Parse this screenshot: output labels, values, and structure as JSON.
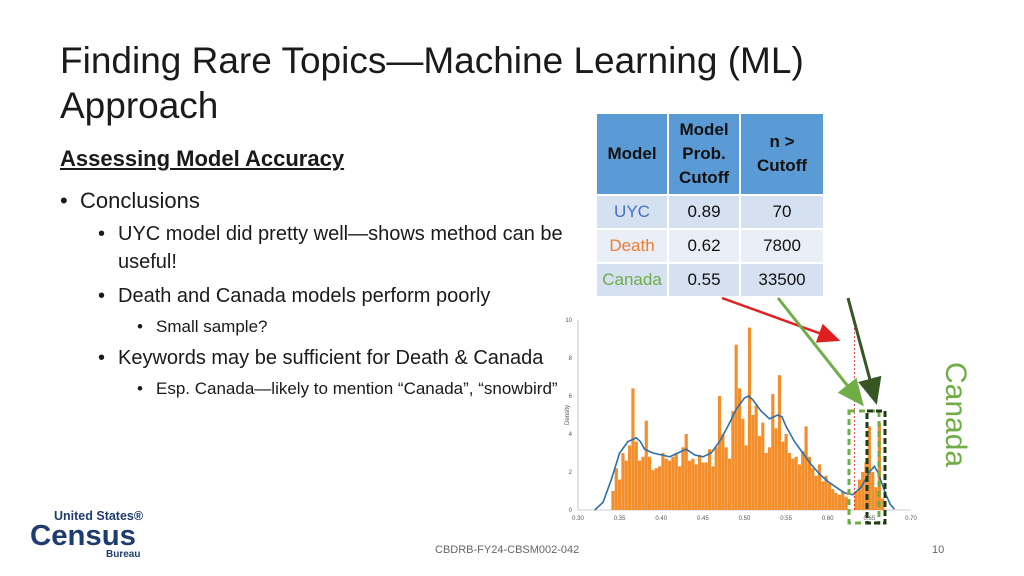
{
  "slide": {
    "title": "Finding Rare Topics—Machine Learning (ML) Approach",
    "subtitle": "Assessing Model Accuracy",
    "bullets": [
      {
        "level": 1,
        "text": "Conclusions"
      },
      {
        "level": 2,
        "text": "UYC model did pretty well—shows method can be useful!"
      },
      {
        "level": 2,
        "text": "Death and Canada models perform poorly"
      },
      {
        "level": 3,
        "text": "Small sample?"
      },
      {
        "level": 2,
        "text": "Keywords may be sufficient for Death & Canada"
      },
      {
        "level": 3,
        "text": "Esp. Canada—likely to mention “Canada”, “snowbird”"
      }
    ],
    "footer": "CBDRB-FY24-CBSM002-042",
    "page_number": "10",
    "side_label": "Canada"
  },
  "table": {
    "headers": [
      "Model",
      "Model Prob. Cutoff",
      "n > Cutoff"
    ],
    "rows": [
      {
        "model": "UYC",
        "cutoff": "0.89",
        "n": "70",
        "color": "#4472c4"
      },
      {
        "model": "Death",
        "cutoff": "0.62",
        "n": "7800",
        "color": "#ed7d31"
      },
      {
        "model": "Canada",
        "cutoff": "0.55",
        "n": "33500",
        "color": "#70ad47"
      }
    ]
  },
  "logo": {
    "line1": "United States®",
    "line2": "Census",
    "line3": "Bureau"
  },
  "colors": {
    "header": "#5b9bd5",
    "bar": "#f28e2b",
    "kde": "#2f6fa7",
    "red_line": "#e02020",
    "green_arrow": "#70ad47",
    "dark_green": "#375623"
  },
  "chart_data": {
    "type": "bar",
    "ylabel": "Density",
    "xlim": [
      0.3,
      0.7
    ],
    "ylim": [
      0,
      10
    ],
    "xticks": [
      "0.30",
      "0.35",
      "0.40",
      "0.45",
      "0.50",
      "0.55",
      "0.60",
      "0.65",
      "0.70"
    ],
    "yticks": [
      "0",
      "2",
      "4",
      "6",
      "8",
      "10"
    ],
    "cutoff_line": 0.632,
    "bars": [
      {
        "x": 0.342,
        "y": 1.0
      },
      {
        "x": 0.346,
        "y": 2.2
      },
      {
        "x": 0.35,
        "y": 1.6
      },
      {
        "x": 0.354,
        "y": 3.0
      },
      {
        "x": 0.358,
        "y": 2.6
      },
      {
        "x": 0.362,
        "y": 3.4
      },
      {
        "x": 0.366,
        "y": 6.4
      },
      {
        "x": 0.37,
        "y": 3.6
      },
      {
        "x": 0.374,
        "y": 2.6
      },
      {
        "x": 0.378,
        "y": 2.8
      },
      {
        "x": 0.382,
        "y": 4.7
      },
      {
        "x": 0.386,
        "y": 2.8
      },
      {
        "x": 0.39,
        "y": 2.1
      },
      {
        "x": 0.394,
        "y": 2.2
      },
      {
        "x": 0.398,
        "y": 2.3
      },
      {
        "x": 0.402,
        "y": 3.0
      },
      {
        "x": 0.406,
        "y": 2.7
      },
      {
        "x": 0.41,
        "y": 2.6
      },
      {
        "x": 0.414,
        "y": 2.8
      },
      {
        "x": 0.418,
        "y": 3.0
      },
      {
        "x": 0.422,
        "y": 2.3
      },
      {
        "x": 0.426,
        "y": 3.3
      },
      {
        "x": 0.43,
        "y": 4.0
      },
      {
        "x": 0.434,
        "y": 2.6
      },
      {
        "x": 0.438,
        "y": 2.7
      },
      {
        "x": 0.442,
        "y": 2.4
      },
      {
        "x": 0.446,
        "y": 2.9
      },
      {
        "x": 0.45,
        "y": 2.5
      },
      {
        "x": 0.454,
        "y": 2.5
      },
      {
        "x": 0.458,
        "y": 3.2
      },
      {
        "x": 0.462,
        "y": 2.3
      },
      {
        "x": 0.466,
        "y": 3.3
      },
      {
        "x": 0.47,
        "y": 6.0
      },
      {
        "x": 0.474,
        "y": 4.0
      },
      {
        "x": 0.478,
        "y": 3.3
      },
      {
        "x": 0.482,
        "y": 2.7
      },
      {
        "x": 0.486,
        "y": 5.2
      },
      {
        "x": 0.49,
        "y": 8.7
      },
      {
        "x": 0.494,
        "y": 6.4
      },
      {
        "x": 0.498,
        "y": 4.8
      },
      {
        "x": 0.502,
        "y": 3.4
      },
      {
        "x": 0.506,
        "y": 9.6
      },
      {
        "x": 0.51,
        "y": 5.0
      },
      {
        "x": 0.514,
        "y": 5.5
      },
      {
        "x": 0.518,
        "y": 3.9
      },
      {
        "x": 0.522,
        "y": 4.6
      },
      {
        "x": 0.526,
        "y": 3.0
      },
      {
        "x": 0.53,
        "y": 3.3
      },
      {
        "x": 0.534,
        "y": 6.1
      },
      {
        "x": 0.538,
        "y": 4.3
      },
      {
        "x": 0.542,
        "y": 7.1
      },
      {
        "x": 0.546,
        "y": 3.6
      },
      {
        "x": 0.55,
        "y": 4.0
      },
      {
        "x": 0.554,
        "y": 3.0
      },
      {
        "x": 0.558,
        "y": 2.7
      },
      {
        "x": 0.562,
        "y": 2.8
      },
      {
        "x": 0.566,
        "y": 2.4
      },
      {
        "x": 0.57,
        "y": 3.1
      },
      {
        "x": 0.574,
        "y": 4.4
      },
      {
        "x": 0.578,
        "y": 2.8
      },
      {
        "x": 0.582,
        "y": 2.2
      },
      {
        "x": 0.586,
        "y": 1.8
      },
      {
        "x": 0.59,
        "y": 2.4
      },
      {
        "x": 0.594,
        "y": 1.5
      },
      {
        "x": 0.598,
        "y": 1.8
      },
      {
        "x": 0.602,
        "y": 1.4
      },
      {
        "x": 0.606,
        "y": 1.1
      },
      {
        "x": 0.61,
        "y": 0.9
      },
      {
        "x": 0.614,
        "y": 0.8
      },
      {
        "x": 0.618,
        "y": 1.0
      },
      {
        "x": 0.622,
        "y": 0.7
      },
      {
        "x": 0.634,
        "y": 1.0
      },
      {
        "x": 0.638,
        "y": 1.6
      },
      {
        "x": 0.642,
        "y": 2.0
      },
      {
        "x": 0.646,
        "y": 2.5
      },
      {
        "x": 0.65,
        "y": 4.4
      },
      {
        "x": 0.654,
        "y": 2.0
      },
      {
        "x": 0.658,
        "y": 1.2
      },
      {
        "x": 0.662,
        "y": 4.6
      },
      {
        "x": 0.666,
        "y": 0.6
      }
    ],
    "kde": [
      [
        0.32,
        0.0
      ],
      [
        0.33,
        0.4
      ],
      [
        0.34,
        1.6
      ],
      [
        0.35,
        3.0
      ],
      [
        0.36,
        3.6
      ],
      [
        0.37,
        3.8
      ],
      [
        0.375,
        3.6
      ],
      [
        0.38,
        3.2
      ],
      [
        0.39,
        3.0
      ],
      [
        0.4,
        2.9
      ],
      [
        0.41,
        2.8
      ],
      [
        0.42,
        3.0
      ],
      [
        0.43,
        3.2
      ],
      [
        0.44,
        2.9
      ],
      [
        0.45,
        2.8
      ],
      [
        0.46,
        3.0
      ],
      [
        0.47,
        3.6
      ],
      [
        0.48,
        4.4
      ],
      [
        0.49,
        5.3
      ],
      [
        0.5,
        5.9
      ],
      [
        0.505,
        6.0
      ],
      [
        0.51,
        5.8
      ],
      [
        0.52,
        5.2
      ],
      [
        0.53,
        4.8
      ],
      [
        0.54,
        5.0
      ],
      [
        0.545,
        4.9
      ],
      [
        0.55,
        4.4
      ],
      [
        0.56,
        3.6
      ],
      [
        0.57,
        3.0
      ],
      [
        0.58,
        2.4
      ],
      [
        0.59,
        1.9
      ],
      [
        0.6,
        1.5
      ],
      [
        0.61,
        1.2
      ],
      [
        0.62,
        0.9
      ],
      [
        0.63,
        0.8
      ],
      [
        0.64,
        1.2
      ],
      [
        0.65,
        2.0
      ],
      [
        0.656,
        2.3
      ],
      [
        0.66,
        2.0
      ],
      [
        0.665,
        1.4
      ],
      [
        0.67,
        0.8
      ],
      [
        0.675,
        0.3
      ],
      [
        0.68,
        0.05
      ]
    ]
  }
}
